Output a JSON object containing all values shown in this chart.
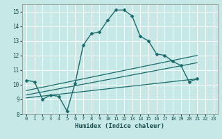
{
  "xlabel": "Humidex (Indice chaleur)",
  "background_color": "#c6e8e6",
  "grid_color": "#ffffff",
  "line_color": "#1a6b6b",
  "xlim": [
    -0.5,
    23.5
  ],
  "ylim": [
    8,
    15.5
  ],
  "xticks": [
    0,
    1,
    2,
    3,
    4,
    5,
    6,
    7,
    8,
    9,
    10,
    11,
    12,
    13,
    14,
    15,
    16,
    17,
    18,
    19,
    20,
    21,
    22,
    23
  ],
  "yticks": [
    8,
    9,
    10,
    11,
    12,
    13,
    14,
    15
  ],
  "series": [
    {
      "x": [
        0,
        1,
        2,
        3,
        4,
        5,
        6,
        7,
        8,
        9,
        10,
        11,
        12,
        13,
        14,
        15,
        16,
        17,
        18,
        19,
        20,
        21
      ],
      "y": [
        10.3,
        10.2,
        9.0,
        9.3,
        9.2,
        8.2,
        10.1,
        12.7,
        13.5,
        13.6,
        14.4,
        15.1,
        15.1,
        14.7,
        13.3,
        13.0,
        12.1,
        12.0,
        11.6,
        11.3,
        10.2,
        10.4
      ],
      "marker": "D",
      "markersize": 2.5,
      "linewidth": 1.0
    },
    {
      "x": [
        0,
        21
      ],
      "y": [
        9.6,
        12.0
      ],
      "marker": null,
      "linewidth": 0.9
    },
    {
      "x": [
        0,
        21
      ],
      "y": [
        9.3,
        11.5
      ],
      "marker": null,
      "linewidth": 0.9
    },
    {
      "x": [
        0,
        21
      ],
      "y": [
        9.1,
        10.4
      ],
      "marker": null,
      "linewidth": 0.9
    }
  ]
}
